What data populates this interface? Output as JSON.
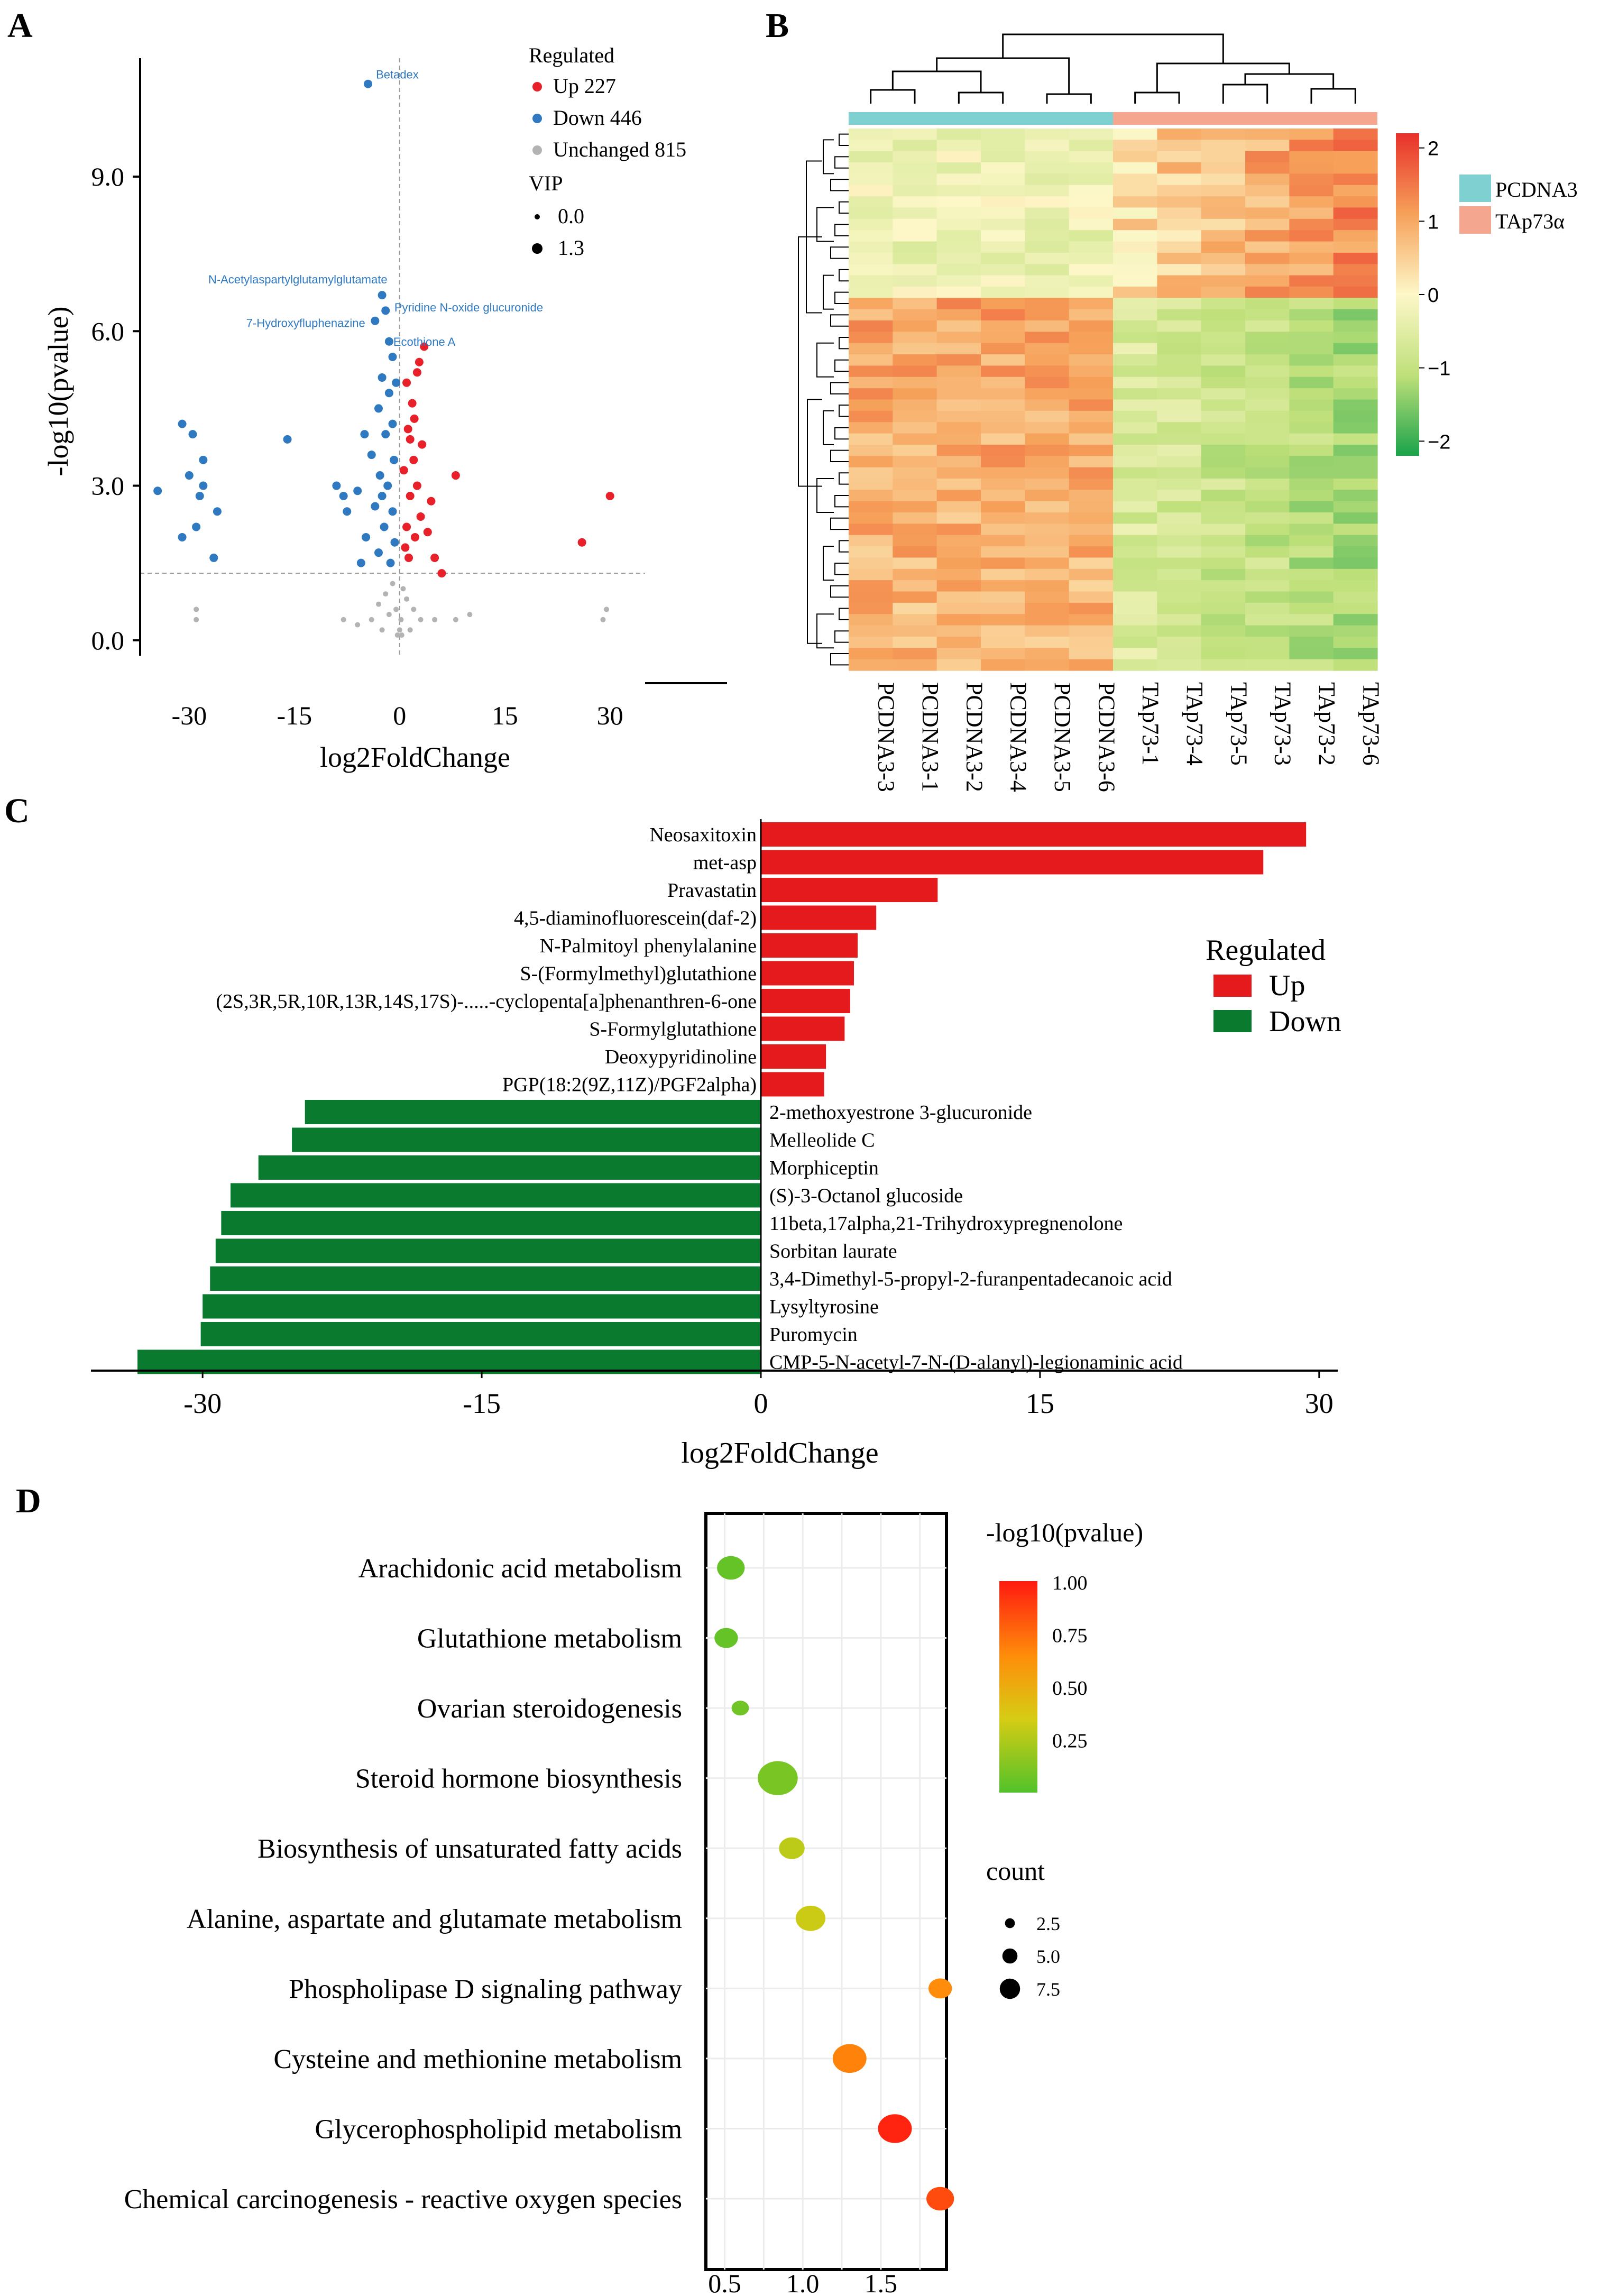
{
  "panels": {
    "a": "A",
    "b": "B",
    "c": "C",
    "d": "D"
  },
  "chart_data": [
    {
      "id": "volcano",
      "type": "scatter",
      "xlabel": "log2FoldChange",
      "ylabel": "-log10(pvalue)",
      "xlim": [
        -37,
        35
      ],
      "ylim": [
        -0.3,
        11.3
      ],
      "x_ticks": [
        {
          "v": -30,
          "label": "-30"
        },
        {
          "v": -15,
          "label": "-15"
        },
        {
          "v": 0,
          "label": "0"
        },
        {
          "v": 15,
          "label": "15"
        },
        {
          "v": 30,
          "label": "30"
        }
      ],
      "y_ticks": [
        {
          "v": 0,
          "label": "0.0"
        },
        {
          "v": 3,
          "label": "3.0"
        },
        {
          "v": 6,
          "label": "6.0"
        },
        {
          "v": 9,
          "label": "9.0"
        }
      ],
      "threshold_y": 1.3,
      "legend": {
        "title": "Regulated",
        "items": [
          {
            "label": "Up 227",
            "color": "#e8202a"
          },
          {
            "label": "Down 446",
            "color": "#2f79c0"
          },
          {
            "label": "Unchanged 815",
            "color": "#b3b3b3"
          }
        ],
        "vip_title": "VIP",
        "vip_items": [
          "0.0",
          "1.3"
        ]
      },
      "annotations": [
        {
          "text": "Betadex",
          "x": -4.5,
          "y": 10.8
        },
        {
          "text": "N-Acetylaspartylglutamylglutamate",
          "x": -2.5,
          "y": 6.7
        },
        {
          "text": "Pyridine N-oxide glucuronide",
          "x": -1.5,
          "y": 6.3
        },
        {
          "text": "7-Hydroxyfluphenazine",
          "x": -4.0,
          "y": 6.0
        },
        {
          "text": "Ecothione A",
          "x": -1.5,
          "y": 5.8
        }
      ],
      "points_up": [
        [
          26,
          1.9
        ],
        [
          30,
          2.8
        ],
        [
          8,
          3.2
        ],
        [
          3.2,
          3.8
        ],
        [
          2.5,
          5.2
        ],
        [
          3.5,
          5.7
        ],
        [
          2.8,
          5.4
        ],
        [
          1.2,
          4.1
        ],
        [
          2,
          3.5
        ],
        [
          2.5,
          3.0
        ],
        [
          3,
          2.4
        ],
        [
          4,
          2.1
        ],
        [
          5,
          1.6
        ],
        [
          6,
          1.3
        ],
        [
          1.5,
          2.8
        ],
        [
          1,
          2.2
        ],
        [
          0.8,
          1.8
        ],
        [
          1.3,
          1.6
        ],
        [
          2.2,
          2.0
        ],
        [
          4.5,
          2.7
        ],
        [
          0.6,
          3.3
        ],
        [
          1.8,
          4.6
        ],
        [
          1,
          5.0
        ],
        [
          2.1,
          4.3
        ],
        [
          1.5,
          3.9
        ]
      ],
      "points_down": [
        [
          -4.5,
          10.8
        ],
        [
          -2.5,
          6.7
        ],
        [
          -2.0,
          6.4
        ],
        [
          -1.5,
          5.8
        ],
        [
          -3.5,
          6.2
        ],
        [
          -1.0,
          5.5
        ],
        [
          -2.5,
          5.1
        ],
        [
          -0.5,
          5.0
        ],
        [
          -1.5,
          4.8
        ],
        [
          -3,
          4.5
        ],
        [
          -1,
          4.2
        ],
        [
          -2,
          4.0
        ],
        [
          -5,
          4.0
        ],
        [
          -4,
          3.6
        ],
        [
          -0.8,
          3.5
        ],
        [
          -2.8,
          3.2
        ],
        [
          -1.7,
          3.0
        ],
        [
          -6,
          2.9
        ],
        [
          -3.5,
          2.6
        ],
        [
          -1,
          2.5
        ],
        [
          -7.5,
          2.5
        ],
        [
          -2.2,
          2.2
        ],
        [
          -4.8,
          2.0
        ],
        [
          -0.7,
          1.9
        ],
        [
          -3,
          1.7
        ],
        [
          -1.3,
          1.5
        ],
        [
          -5.5,
          1.5
        ],
        [
          -8,
          2.8
        ],
        [
          -2.5,
          2.8
        ],
        [
          -9,
          3.0
        ],
        [
          -16,
          3.9
        ],
        [
          -34.5,
          2.9
        ],
        [
          -31,
          4.2
        ],
        [
          -29.5,
          4.0
        ],
        [
          -28,
          3.5
        ],
        [
          -28.5,
          2.8
        ],
        [
          -30,
          3.2
        ],
        [
          -26,
          2.5
        ],
        [
          -29,
          2.2
        ],
        [
          -26.5,
          1.6
        ],
        [
          -31,
          2.0
        ],
        [
          -28,
          3.0
        ]
      ],
      "points_unchanged": [
        [
          -29,
          0.6
        ],
        [
          -29,
          0.4
        ],
        [
          29,
          0.4
        ],
        [
          29.5,
          0.6
        ],
        [
          -1,
          1.1
        ],
        [
          -2,
          0.9
        ],
        [
          0.5,
          1.0
        ],
        [
          1,
          0.8
        ],
        [
          -0.5,
          0.6
        ],
        [
          0.2,
          0.4
        ],
        [
          -1.5,
          0.5
        ],
        [
          -3,
          0.7
        ],
        [
          2,
          0.6
        ],
        [
          3,
          0.4
        ],
        [
          -4,
          0.4
        ],
        [
          5,
          0.4
        ],
        [
          8,
          0.4
        ],
        [
          10,
          0.5
        ],
        [
          -6,
          0.3
        ],
        [
          -8,
          0.4
        ],
        [
          0,
          0.2
        ],
        [
          -0.3,
          0.1
        ],
        [
          0.3,
          0.1
        ],
        [
          1.5,
          0.2
        ],
        [
          -2.5,
          0.2
        ]
      ]
    },
    {
      "id": "heatmap",
      "type": "heatmap",
      "columns": [
        "PCDNA3-3",
        "PCDNA3-1",
        "PCDNA3-2",
        "PCDNA3-4",
        "PCDNA3-5",
        "PCDNA3-6",
        "TAp73-1",
        "TAp73-4",
        "TAp73-5",
        "TAp73-3",
        "TAp73-2",
        "TAp73-6"
      ],
      "groups": [
        {
          "label": "PCDNA3",
          "color": "#7fd1d1"
        },
        {
          "label": "TAp73α",
          "color": "#f4a68f"
        }
      ],
      "colorbar": {
        "min": -2.2,
        "max": 2.2,
        "ticks": [
          {
            "v": 2,
            "label": "2"
          },
          {
            "v": 1,
            "label": "1"
          },
          {
            "v": 0,
            "label": "0"
          },
          {
            "v": -1,
            "label": "−1"
          },
          {
            "v": -2,
            "label": "−2"
          }
        ]
      },
      "rows": 48
    },
    {
      "id": "bars",
      "type": "bar",
      "orientation": "horizontal",
      "xlabel": "log2FoldChange",
      "xlim": [
        -36,
        31
      ],
      "x_ticks": [
        {
          "v": -30,
          "label": "-30"
        },
        {
          "v": -15,
          "label": "-15"
        },
        {
          "v": 0,
          "label": "0"
        },
        {
          "v": 15,
          "label": "15"
        },
        {
          "v": 30,
          "label": "30"
        }
      ],
      "legend": {
        "title": "Regulated",
        "items": [
          {
            "label": "Up",
            "color": "#e41a1c"
          },
          {
            "label": "Down",
            "color": "#0a7a2f"
          }
        ]
      },
      "series": [
        {
          "name": "Up",
          "categories": [
            "Neosaxitoxin",
            "met-asp",
            "Pravastatin",
            "4,5-diaminofluorescein(daf-2)",
            "N-Palmitoyl phenylalanine",
            "S-(Formylmethyl)glutathione",
            "(2S,3R,5R,10R,13R,14S,17S)-.....-cyclopenta[a]phenanthren-6-one",
            "S-Formylglutathione",
            "Deoxypyridinoline",
            "PGP(18:2(9Z,11Z)/PGF2alpha)"
          ],
          "values": [
            29.3,
            27.0,
            9.5,
            6.2,
            5.2,
            5.0,
            4.8,
            4.5,
            3.5,
            3.4
          ]
        },
        {
          "name": "Down",
          "categories": [
            "2-methoxyestrone 3-glucuronide",
            "Melleolide C",
            "Morphiceptin",
            "(S)-3-Octanol glucoside",
            "11beta,17alpha,21-Trihydroxypregnenolone",
            "Sorbitan laurate",
            "3,4-Dimethyl-5-propyl-2-furanpentadecanoic acid",
            "Lysyltyrosine",
            "Puromycin",
            "CMP-5-N-acetyl-7-N-(D-alanyl)-legionaminic acid"
          ],
          "values": [
            -24.5,
            -25.2,
            -27.0,
            -28.5,
            -29.0,
            -29.3,
            -29.6,
            -30.0,
            -30.1,
            -33.5
          ]
        }
      ]
    },
    {
      "id": "bubbles",
      "type": "scatter",
      "xlim": [
        0.38,
        1.92
      ],
      "x_ticks": [
        {
          "v": 0.5,
          "label": "0.5"
        },
        {
          "v": 1.0,
          "label": "1.0"
        },
        {
          "v": 1.5,
          "label": "1.5"
        }
      ],
      "color_title": "-log10(pvalue)",
      "color_ticks": [
        {
          "v": 1.0,
          "label": "1.00"
        },
        {
          "v": 0.75,
          "label": "0.75"
        },
        {
          "v": 0.5,
          "label": "0.50"
        },
        {
          "v": 0.25,
          "label": "0.25"
        }
      ],
      "size_title": "count",
      "size_ticks": [
        {
          "v": 2.5,
          "label": "2.5"
        },
        {
          "v": 5.0,
          "label": "5.0"
        },
        {
          "v": 7.5,
          "label": "7.5"
        }
      ],
      "categories": [
        "Arachidonic acid metabolism",
        "Glutathione metabolism",
        "Ovarian steroidogenesis",
        "Steroid hormone biosynthesis",
        "Biosynthesis of unsaturated fatty acids",
        "Alanine, aspartate and glutamate metabolism",
        "Phospholipase D signaling pathway",
        "Cysteine and methionine metabolism",
        "Glycerophospholipid metabolism",
        "Chemical carcinogenesis - reactive oxygen species"
      ],
      "x": [
        0.54,
        0.51,
        0.6,
        0.84,
        0.93,
        1.05,
        1.88,
        1.3,
        1.59,
        1.88
      ],
      "color_value": [
        0.05,
        0.05,
        0.08,
        0.1,
        0.28,
        0.32,
        0.65,
        0.68,
        0.97,
        0.85
      ],
      "count": [
        4.5,
        3.5,
        2.0,
        7.5,
        4.0,
        5.0,
        3.5,
        6.0,
        6.0,
        4.5
      ]
    }
  ]
}
